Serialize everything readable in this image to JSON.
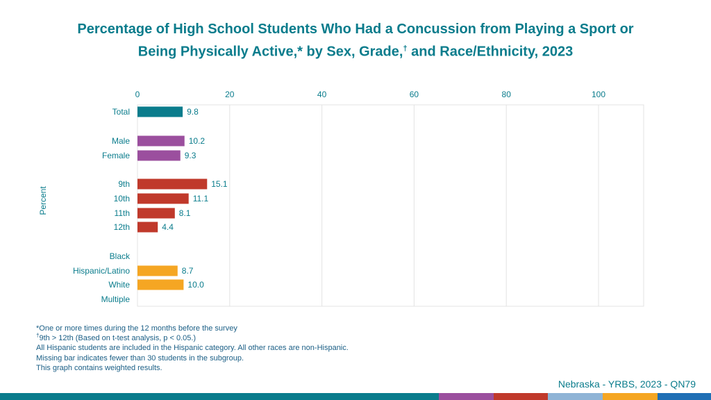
{
  "title_line1": "Percentage of High School Students Who Had a Concussion from Playing a Sport or",
  "title_line2_pre": "Being Physically Active,* by Sex, Grade,",
  "title_line2_dagger": "†",
  "title_line2_post": " and Race/Ethnicity, 2023",
  "ylabel": "Percent",
  "chart_data": {
    "type": "bar",
    "orientation": "horizontal",
    "xlim": [
      0,
      110
    ],
    "xticks": [
      0,
      20,
      40,
      60,
      80,
      100
    ],
    "categories": [
      "Total",
      "Male",
      "Female",
      "9th",
      "10th",
      "11th",
      "12th",
      "Black",
      "Hispanic/Latino",
      "White",
      "Multiple"
    ],
    "values": [
      9.8,
      10.2,
      9.3,
      15.1,
      11.1,
      8.1,
      4.4,
      null,
      8.7,
      10.0,
      null
    ],
    "value_labels": [
      "9.8",
      "10.2",
      "9.3",
      "15.1",
      "11.1",
      "8.1",
      "4.4",
      "",
      "8.7",
      "10.0",
      ""
    ],
    "groups": [
      "total",
      "sex",
      "sex",
      "grade",
      "grade",
      "grade",
      "grade",
      "race",
      "race",
      "race",
      "race"
    ],
    "group_colors": {
      "total": "#0a7c8c",
      "sex": "#9b4f9e",
      "grade": "#c0392b",
      "race": "#f5a623"
    },
    "ylabel": "Percent"
  },
  "notes": {
    "line1": "*One or more times during the 12 months before the survey",
    "line2_mark": "†",
    "line2": "9th > 12th (Based on t-test analysis, p < 0.05.)",
    "line3": "All Hispanic students are included in the Hispanic category.  All other races are non-Hispanic.",
    "line4": "Missing bar indicates fewer than 30 students in the subgroup.",
    "line5": "This graph contains weighted results."
  },
  "source": "Nebraska - YRBS, 2023 - QN79",
  "footer_colors": [
    "#0a7c8c",
    "#9b4f9e",
    "#c0392b",
    "#8fb4d6",
    "#f5a623",
    "#1f6fb5"
  ]
}
